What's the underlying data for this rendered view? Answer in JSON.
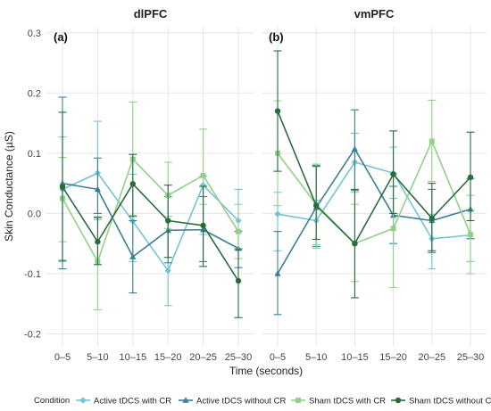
{
  "chart_data": {
    "type": "line",
    "ylabel": "Skin Conductance (µS)",
    "xlabel": "Time (seconds)",
    "categories": [
      "0–5",
      "5–10",
      "10–15",
      "15–20",
      "20–25",
      "25–30"
    ],
    "ylim": [
      -0.22,
      0.31
    ],
    "yticks": [
      -0.2,
      -0.1,
      0.0,
      0.1,
      0.2,
      0.3
    ],
    "ytick_labels": [
      "-0.2",
      "-0.1",
      "0.0",
      "0.1",
      "0.2",
      "0.3"
    ],
    "grid": true,
    "legend": {
      "title": "Condition",
      "position": "bottom"
    },
    "series_meta": [
      {
        "name": "Active tDCS with CR",
        "color": "#72c4d6",
        "marker": "diamond"
      },
      {
        "name": "Active tDCS without CR",
        "color": "#3d7f94",
        "marker": "triangle"
      },
      {
        "name": "Sham tDCS with CR",
        "color": "#93d18a",
        "marker": "square"
      },
      {
        "name": "Sham tDCS without CR",
        "color": "#2a6b3c",
        "marker": "circle"
      }
    ],
    "panels": [
      {
        "title": "dlPFC",
        "label": "(a)",
        "series": [
          {
            "name": "Active tDCS with CR",
            "values": [
              0.04,
              0.067,
              -0.013,
              -0.095,
              0.047,
              -0.012
            ],
            "lower": [
              -0.08,
              -0.01,
              -0.08,
              -0.153,
              -0.035,
              -0.058
            ],
            "upper": [
              0.127,
              0.153,
              0.065,
              -0.005,
              0.062,
              0.04
            ]
          },
          {
            "name": "Active tDCS without CR",
            "values": [
              0.05,
              0.04,
              -0.072,
              -0.028,
              -0.027,
              -0.058
            ],
            "lower": [
              -0.092,
              0.0,
              -0.132,
              -0.082,
              -0.08,
              -0.09
            ],
            "upper": [
              0.193,
              0.092,
              -0.012,
              0.028,
              0.028,
              -0.03
            ]
          },
          {
            "name": "Sham tDCS with CR",
            "values": [
              0.025,
              -0.08,
              0.09,
              0.03,
              0.063,
              -0.03
            ],
            "lower": [
              -0.047,
              -0.16,
              -0.003,
              -0.025,
              0.015,
              -0.075
            ],
            "upper": [
              0.093,
              -0.008,
              0.185,
              0.085,
              0.14,
              0.015
            ]
          },
          {
            "name": "Sham tDCS without CR",
            "values": [
              0.044,
              -0.047,
              0.049,
              -0.012,
              -0.02,
              -0.112
            ],
            "lower": [
              -0.078,
              -0.085,
              -0.005,
              -0.073,
              -0.088,
              -0.173
            ],
            "upper": [
              0.168,
              -0.006,
              0.098,
              0.047,
              0.045,
              -0.06
            ]
          }
        ]
      },
      {
        "title": "vmPFC",
        "label": "(b)",
        "series": [
          {
            "name": "Active tDCS with CR",
            "values": [
              -0.001,
              -0.012,
              0.085,
              0.067,
              -0.042,
              -0.036
            ],
            "lower": [
              -0.062,
              -0.052,
              0.035,
              0.025,
              -0.092,
              -0.08
            ],
            "upper": [
              0.035,
              0.022,
              0.133,
              0.11,
              -0.002,
              0.005
            ]
          },
          {
            "name": "Active tDCS without CR",
            "values": [
              -0.1,
              0.01,
              0.107,
              -0.003,
              -0.012,
              0.007
            ],
            "lower": [
              -0.168,
              -0.055,
              0.038,
              -0.05,
              -0.065,
              -0.042
            ],
            "upper": [
              -0.03,
              0.08,
              0.172,
              0.045,
              0.04,
              0.058
            ]
          },
          {
            "name": "Sham tDCS with CR",
            "values": [
              0.1,
              0.015,
              -0.05,
              -0.025,
              0.12,
              -0.035
            ],
            "lower": [
              0.013,
              -0.058,
              -0.113,
              -0.123,
              0.053,
              -0.1
            ],
            "upper": [
              0.187,
              0.082,
              0.015,
              0.065,
              0.188,
              0.03
            ]
          },
          {
            "name": "Sham tDCS without CR",
            "values": [
              0.17,
              0.013,
              -0.05,
              0.065,
              -0.008,
              0.06
            ],
            "lower": [
              0.07,
              -0.043,
              -0.14,
              0.0,
              -0.062,
              -0.012
            ],
            "upper": [
              0.27,
              0.078,
              0.04,
              0.137,
              0.05,
              0.135
            ]
          }
        ]
      }
    ]
  }
}
